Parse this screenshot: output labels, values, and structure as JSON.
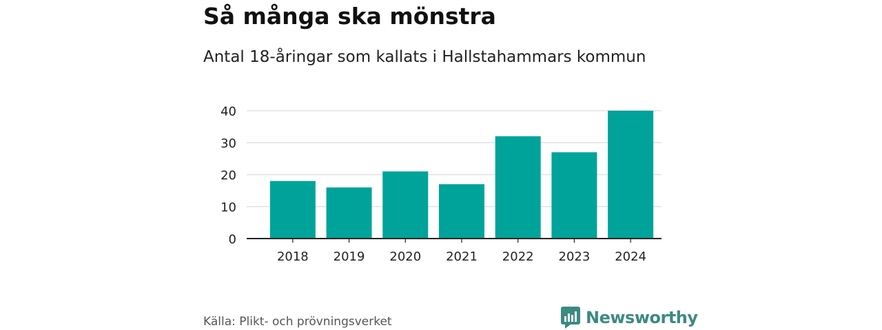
{
  "header": {
    "title": "Så många ska mönstra",
    "subtitle": "Antal 18-åringar som kallats i Hallstahammars kommun"
  },
  "footer": {
    "source": "Källa: Plikt- och prövningsverket",
    "brand": "Newsworthy",
    "brand_icon": "newsworthy-logo-icon"
  },
  "colors": {
    "bar": "#00a39a",
    "grid": "#dcdcdc",
    "axis": "#222222",
    "brand": "#3c8a82"
  },
  "chart_data": {
    "type": "bar",
    "categories": [
      "2018",
      "2019",
      "2020",
      "2021",
      "2022",
      "2023",
      "2024"
    ],
    "values": [
      18,
      16,
      21,
      17,
      32,
      27,
      40
    ],
    "ylim": [
      0,
      40
    ],
    "yticks": [
      "0",
      "10",
      "20",
      "30",
      "40"
    ],
    "grid": true,
    "xlabel": "",
    "ylabel": ""
  }
}
